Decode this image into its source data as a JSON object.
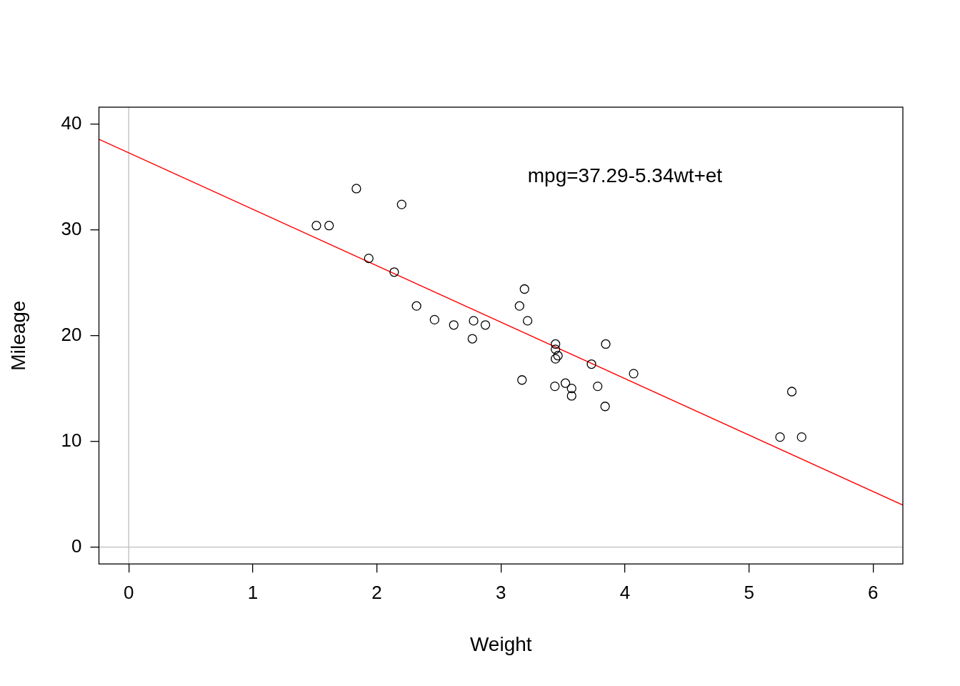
{
  "chart_data": {
    "type": "scatter",
    "x_label": "Weight",
    "y_label": "Mileage",
    "xlim": [
      -0.24,
      6.24
    ],
    "ylim": [
      -1.6,
      41.6
    ],
    "xticks": [
      0,
      1,
      2,
      3,
      4,
      5,
      6
    ],
    "yticks": [
      0,
      10,
      20,
      30,
      40
    ],
    "grid": false,
    "hlines": [
      0
    ],
    "vlines": [
      0
    ],
    "annotation": {
      "text": "mpg=37.29-5.34wt+et",
      "x": 4.0,
      "y": 35
    },
    "series": [
      {
        "type": "scatter",
        "color": "#000000",
        "marker": "circle-open",
        "x": [
          2.62,
          2.875,
          2.32,
          3.215,
          3.44,
          3.46,
          3.57,
          3.19,
          3.15,
          3.44,
          3.44,
          4.07,
          3.73,
          3.78,
          5.25,
          5.424,
          5.345,
          2.2,
          1.615,
          1.835,
          2.465,
          3.52,
          3.435,
          3.84,
          3.845,
          1.935,
          2.14,
          1.513,
          3.17,
          2.77,
          3.57,
          2.78
        ],
        "values": [
          21.0,
          21.0,
          22.8,
          21.4,
          18.7,
          18.1,
          14.3,
          24.4,
          22.8,
          19.2,
          17.8,
          16.4,
          17.3,
          15.2,
          10.4,
          10.4,
          14.7,
          32.4,
          30.4,
          33.9,
          21.5,
          15.5,
          15.2,
          13.3,
          19.2,
          27.3,
          26.0,
          30.4,
          15.8,
          19.7,
          15.0,
          21.4
        ]
      },
      {
        "type": "line",
        "color": "#ff0000",
        "line_style": "solid",
        "x": [
          -0.24,
          6.24
        ],
        "values": [
          38.57,
          3.97
        ]
      }
    ]
  }
}
